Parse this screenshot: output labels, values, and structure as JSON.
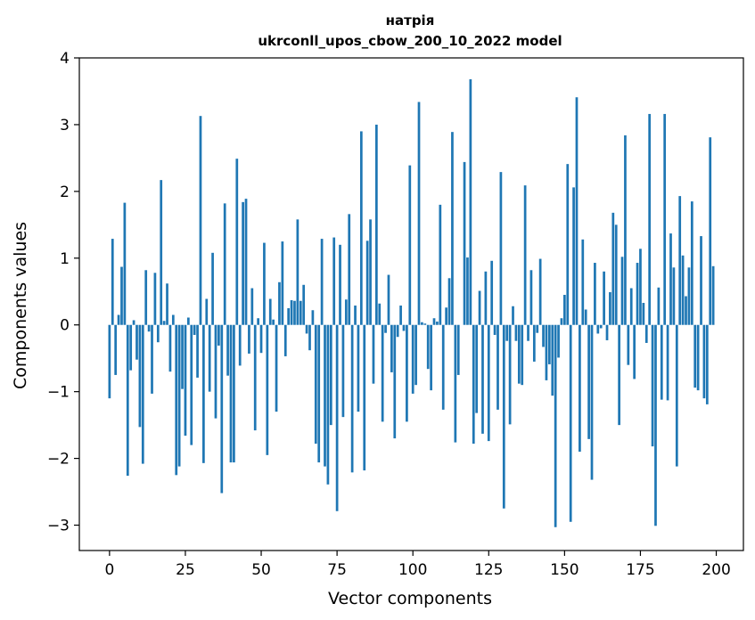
{
  "chart_data": {
    "type": "bar",
    "title": "натрія",
    "subtitle": "ukrconll_upos_cbow_200_10_2022 model",
    "xlabel": "Vector components",
    "ylabel": "Components values",
    "xlim": [
      -9.95,
      208.95
    ],
    "ylim": [
      -3.38,
      4.0
    ],
    "xticks": [
      0,
      25,
      50,
      75,
      100,
      125,
      150,
      175,
      200
    ],
    "xtick_labels": [
      "0",
      "25",
      "50",
      "75",
      "100",
      "125",
      "150",
      "175",
      "200"
    ],
    "yticks": [
      -3,
      -2,
      -1,
      0,
      1,
      2,
      3,
      4
    ],
    "ytick_labels": [
      "−3",
      "−2",
      "−1",
      "0",
      "1",
      "2",
      "3",
      "4"
    ],
    "grid": false,
    "bar_color": "#1f77b4",
    "x": [
      0,
      1,
      2,
      3,
      4,
      5,
      6,
      7,
      8,
      9,
      10,
      11,
      12,
      13,
      14,
      15,
      16,
      17,
      18,
      19,
      20,
      21,
      22,
      23,
      24,
      25,
      26,
      27,
      28,
      29,
      30,
      31,
      32,
      33,
      34,
      35,
      36,
      37,
      38,
      39,
      40,
      41,
      42,
      43,
      44,
      45,
      46,
      47,
      48,
      49,
      50,
      51,
      52,
      53,
      54,
      55,
      56,
      57,
      58,
      59,
      60,
      61,
      62,
      63,
      64,
      65,
      66,
      67,
      68,
      69,
      70,
      71,
      72,
      73,
      74,
      75,
      76,
      77,
      78,
      79,
      80,
      81,
      82,
      83,
      84,
      85,
      86,
      87,
      88,
      89,
      90,
      91,
      92,
      93,
      94,
      95,
      96,
      97,
      98,
      99,
      100,
      101,
      102,
      103,
      104,
      105,
      106,
      107,
      108,
      109,
      110,
      111,
      112,
      113,
      114,
      115,
      116,
      117,
      118,
      119,
      120,
      121,
      122,
      123,
      124,
      125,
      126,
      127,
      128,
      129,
      130,
      131,
      132,
      133,
      134,
      135,
      136,
      137,
      138,
      139,
      140,
      141,
      142,
      143,
      144,
      145,
      146,
      147,
      148,
      149,
      150,
      151,
      152,
      153,
      154,
      155,
      156,
      157,
      158,
      159,
      160,
      161,
      162,
      163,
      164,
      165,
      166,
      167,
      168,
      169,
      170,
      171,
      172,
      173,
      174,
      175,
      176,
      177,
      178,
      179,
      180,
      181,
      182,
      183,
      184,
      185,
      186,
      187,
      188,
      189,
      190,
      191,
      192,
      193,
      194,
      195,
      196,
      197,
      198,
      199
    ],
    "values": [
      -1.1,
      1.29,
      -0.75,
      0.15,
      0.87,
      1.83,
      -2.26,
      -0.68,
      0.07,
      -0.52,
      -1.53,
      -2.08,
      0.82,
      -0.1,
      -1.03,
      0.78,
      -0.26,
      2.17,
      0.06,
      0.62,
      -0.7,
      0.15,
      -2.25,
      -2.12,
      -0.96,
      -1.66,
      0.11,
      -1.8,
      -0.15,
      -0.79,
      3.13,
      -2.07,
      0.39,
      -1.0,
      1.08,
      -1.4,
      -0.31,
      -2.52,
      1.82,
      -0.76,
      -2.06,
      -2.06,
      2.49,
      -0.61,
      1.84,
      1.89,
      -0.43,
      0.55,
      -1.58,
      0.1,
      -0.42,
      1.23,
      -1.95,
      0.39,
      0.08,
      -1.3,
      0.64,
      1.25,
      -0.47,
      0.25,
      0.37,
      0.36,
      1.58,
      0.36,
      0.6,
      -0.13,
      -0.38,
      0.22,
      -1.78,
      -2.06,
      1.29,
      -2.12,
      -2.39,
      -1.5,
      1.31,
      -2.79,
      1.2,
      -1.38,
      0.38,
      1.66,
      -2.21,
      0.29,
      -1.3,
      2.9,
      -2.18,
      1.26,
      1.58,
      -0.88,
      3.0,
      0.32,
      -1.45,
      -0.12,
      0.75,
      -0.71,
      -1.7,
      -0.18,
      0.29,
      -0.09,
      -1.45,
      2.39,
      -1.03,
      -0.9,
      3.34,
      0.04,
      0.02,
      -0.66,
      -0.98,
      0.1,
      0.05,
      1.8,
      -1.27,
      0.26,
      0.7,
      2.89,
      -1.76,
      -0.75,
      0.0,
      2.44,
      1.01,
      3.68,
      -1.78,
      -1.32,
      0.51,
      -1.63,
      0.8,
      -1.74,
      0.96,
      -0.15,
      -1.27,
      2.29,
      -2.75,
      -0.24,
      -1.49,
      0.28,
      -0.24,
      -0.88,
      -0.9,
      2.09,
      -0.24,
      0.82,
      -0.55,
      -0.12,
      0.99,
      -0.33,
      -0.83,
      -0.59,
      -1.06,
      -3.03,
      -0.49,
      0.1,
      0.45,
      2.41,
      -2.95,
      2.06,
      3.41,
      -1.9,
      1.28,
      0.23,
      -1.71,
      -2.32,
      0.93,
      -0.13,
      -0.05,
      0.8,
      -0.23,
      0.49,
      1.68,
      1.5,
      -1.5,
      1.02,
      2.84,
      -0.6,
      0.55,
      -0.81,
      0.93,
      1.14,
      0.33,
      -0.27,
      3.16,
      -1.82,
      -3.01,
      0.56,
      -1.12,
      3.16,
      -1.13,
      1.37,
      0.86,
      -2.12,
      1.93,
      1.04,
      0.43,
      0.86,
      1.85,
      -0.94,
      -0.98,
      1.33,
      -1.1,
      -1.19,
      2.81,
      0.88
    ]
  }
}
